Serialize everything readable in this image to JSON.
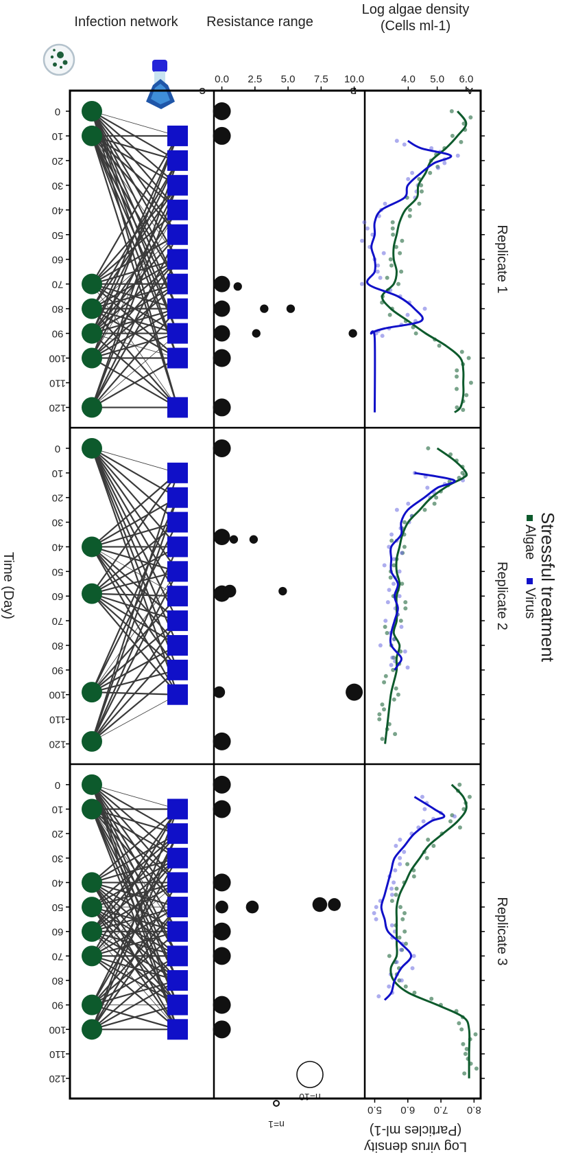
{
  "title": "Stressful treatment",
  "legend": [
    {
      "label": "Algae",
      "color": "#0d5a2c"
    },
    {
      "label": "Virus",
      "color": "#1010c8"
    }
  ],
  "replicates": [
    "Replicate 1",
    "Replicate 2",
    "Replicate 3"
  ],
  "panel_letters": [
    "A",
    "B",
    "C"
  ],
  "row_labels": {
    "algae": "Log algae density",
    "algae_unit": "(Cells ml-1)",
    "resistance": "Resistance range",
    "network": "Infection network"
  },
  "right_axis": {
    "label": "Log virus density",
    "unit": "(Particles ml-1)"
  },
  "x_label": "Time (Day)",
  "size_legend": [
    {
      "label": "n=10",
      "n": 10
    },
    {
      "label": "n=1",
      "n": 1
    }
  ],
  "chart_data": {
    "type": "line",
    "x_ticks": [
      0,
      10,
      20,
      30,
      40,
      50,
      60,
      70,
      80,
      90,
      100,
      110,
      120
    ],
    "x_range": [
      -5,
      126
    ],
    "algae_axis": {
      "ticks": [
        "4.0",
        "5.0",
        "6.0"
      ],
      "range": [
        2.5,
        6.5
      ]
    },
    "virus_axis": {
      "ticks": [
        "5.0",
        "6.0",
        "7.0",
        "8.0"
      ],
      "range": [
        4.7,
        8.2
      ]
    },
    "resistance_axis": {
      "ticks": [
        "0.0",
        "2.5",
        "5.0",
        "7.5",
        "10.0"
      ],
      "range": [
        -0.6,
        10.8
      ]
    },
    "panels": [
      {
        "replicate": "Replicate 1",
        "algae_line": [
          [
            0,
            5.7
          ],
          [
            5,
            6.0
          ],
          [
            10,
            5.7
          ],
          [
            15,
            5.3
          ],
          [
            20,
            4.8
          ],
          [
            25,
            4.6
          ],
          [
            30,
            4.35
          ],
          [
            35,
            4.3
          ],
          [
            40,
            3.9
          ],
          [
            45,
            3.7
          ],
          [
            50,
            3.6
          ],
          [
            55,
            3.5
          ],
          [
            60,
            3.5
          ],
          [
            65,
            3.6
          ],
          [
            70,
            3.5
          ],
          [
            75,
            3.1
          ],
          [
            80,
            3.4
          ],
          [
            85,
            4.0
          ],
          [
            90,
            4.6
          ],
          [
            95,
            5.3
          ],
          [
            100,
            5.8
          ],
          [
            105,
            5.9
          ],
          [
            110,
            5.9
          ],
          [
            115,
            5.9
          ],
          [
            120,
            5.8
          ],
          [
            122,
            5.6
          ]
        ],
        "virus_line": [
          [
            12,
            6.0
          ],
          [
            15,
            6.4
          ],
          [
            18,
            7.3
          ],
          [
            21,
            6.8
          ],
          [
            25,
            6.4
          ],
          [
            30,
            6.0
          ],
          [
            35,
            5.9
          ],
          [
            40,
            5.2
          ],
          [
            45,
            5.0
          ],
          [
            50,
            5.0
          ],
          [
            55,
            4.9
          ],
          [
            60,
            5.0
          ],
          [
            65,
            5.0
          ],
          [
            70,
            4.8
          ],
          [
            75,
            5.7
          ],
          [
            80,
            6.2
          ],
          [
            85,
            6.4
          ],
          [
            88,
            5.3
          ],
          [
            90,
            4.9
          ],
          [
            92,
            5.0
          ],
          [
            122,
            5.0
          ]
        ],
        "resistance": [
          [
            0,
            0,
            10
          ],
          [
            10,
            0,
            10
          ],
          [
            70,
            0,
            8
          ],
          [
            71,
            1.2,
            1
          ],
          [
            80,
            0,
            8
          ],
          [
            80,
            3.2,
            1
          ],
          [
            80,
            5.2,
            1
          ],
          [
            90,
            0,
            8
          ],
          [
            90,
            2.6,
            1
          ],
          [
            90,
            9.9,
            1
          ],
          [
            100,
            0,
            10
          ],
          [
            120,
            0,
            10
          ]
        ],
        "hosts": [
          0,
          10,
          70,
          80,
          90,
          100,
          120
        ],
        "viruses": [
          10,
          20,
          30,
          40,
          50,
          60,
          70,
          80,
          90,
          100,
          120
        ]
      },
      {
        "replicate": "Replicate 2",
        "algae_line": [
          [
            0,
            5.0
          ],
          [
            5,
            5.6
          ],
          [
            10,
            6.0
          ],
          [
            12,
            5.9
          ],
          [
            15,
            5.4
          ],
          [
            20,
            4.8
          ],
          [
            25,
            4.4
          ],
          [
            30,
            4.0
          ],
          [
            35,
            3.8
          ],
          [
            40,
            3.7
          ],
          [
            45,
            3.6
          ],
          [
            50,
            3.6
          ],
          [
            55,
            3.7
          ],
          [
            60,
            3.6
          ],
          [
            65,
            3.6
          ],
          [
            70,
            3.6
          ],
          [
            75,
            3.5
          ],
          [
            80,
            3.7
          ],
          [
            85,
            3.6
          ],
          [
            90,
            3.6
          ],
          [
            95,
            3.5
          ],
          [
            100,
            3.4
          ],
          [
            110,
            3.3
          ],
          [
            120,
            3.2
          ]
        ],
        "virus_line": [
          [
            10,
            6.2
          ],
          [
            13,
            7.4
          ],
          [
            16,
            6.9
          ],
          [
            20,
            6.5
          ],
          [
            25,
            6.0
          ],
          [
            30,
            5.8
          ],
          [
            35,
            5.8
          ],
          [
            40,
            5.5
          ],
          [
            45,
            5.5
          ],
          [
            50,
            5.5
          ],
          [
            55,
            5.7
          ],
          [
            60,
            5.6
          ],
          [
            65,
            5.7
          ],
          [
            70,
            5.6
          ],
          [
            75,
            5.5
          ],
          [
            80,
            5.5
          ],
          [
            85,
            5.8
          ],
          [
            88,
            5.7
          ],
          [
            90,
            5.6
          ]
        ],
        "resistance": [
          [
            0,
            0,
            10
          ],
          [
            36,
            0,
            8
          ],
          [
            37,
            0.9,
            1
          ],
          [
            37,
            2.4,
            1
          ],
          [
            59,
            0,
            8
          ],
          [
            58,
            0.6,
            4
          ],
          [
            58,
            4.6,
            1
          ],
          [
            99,
            -0.2,
            3
          ],
          [
            99,
            10.0,
            9
          ],
          [
            119,
            0,
            10
          ]
        ],
        "hosts": [
          0,
          40,
          59,
          99,
          119
        ],
        "viruses": [
          10,
          20,
          30,
          40,
          50,
          60,
          70,
          80,
          90,
          100
        ]
      },
      {
        "replicate": "Replicate 3",
        "algae_line": [
          [
            0,
            5.5
          ],
          [
            5,
            5.9
          ],
          [
            10,
            6.0
          ],
          [
            15,
            5.7
          ],
          [
            20,
            5.2
          ],
          [
            25,
            4.7
          ],
          [
            30,
            4.4
          ],
          [
            35,
            4.1
          ],
          [
            40,
            3.9
          ],
          [
            45,
            3.7
          ],
          [
            50,
            3.6
          ],
          [
            55,
            3.6
          ],
          [
            60,
            3.6
          ],
          [
            65,
            3.6
          ],
          [
            70,
            3.6
          ],
          [
            75,
            3.4
          ],
          [
            80,
            3.5
          ],
          [
            85,
            4.0
          ],
          [
            90,
            5.0
          ],
          [
            95,
            5.9
          ],
          [
            100,
            6.1
          ],
          [
            110,
            6.1
          ],
          [
            120,
            6.1
          ]
        ],
        "virus_line": [
          [
            5,
            6.2
          ],
          [
            10,
            6.8
          ],
          [
            13,
            7.1
          ],
          [
            15,
            6.7
          ],
          [
            20,
            6.2
          ],
          [
            25,
            5.9
          ],
          [
            30,
            5.6
          ],
          [
            35,
            5.5
          ],
          [
            40,
            5.4
          ],
          [
            45,
            5.3
          ],
          [
            50,
            5.2
          ],
          [
            55,
            5.3
          ],
          [
            60,
            5.4
          ],
          [
            65,
            5.8
          ],
          [
            70,
            6.1
          ],
          [
            75,
            5.8
          ],
          [
            80,
            5.6
          ],
          [
            85,
            5.5
          ],
          [
            88,
            5.3
          ]
        ],
        "resistance": [
          [
            0,
            0,
            10
          ],
          [
            10,
            0,
            10
          ],
          [
            40,
            0,
            10
          ],
          [
            50,
            0,
            4
          ],
          [
            50,
            2.3,
            4
          ],
          [
            49,
            7.4,
            6
          ],
          [
            49,
            8.5,
            4
          ],
          [
            60,
            0,
            10
          ],
          [
            70,
            0,
            10
          ],
          [
            90,
            0,
            10
          ],
          [
            100,
            0,
            10
          ]
        ],
        "hosts": [
          0,
          10,
          40,
          50,
          60,
          70,
          90,
          100
        ],
        "viruses": [
          10,
          20,
          30,
          40,
          50,
          60,
          70,
          80,
          90,
          100
        ]
      }
    ]
  }
}
